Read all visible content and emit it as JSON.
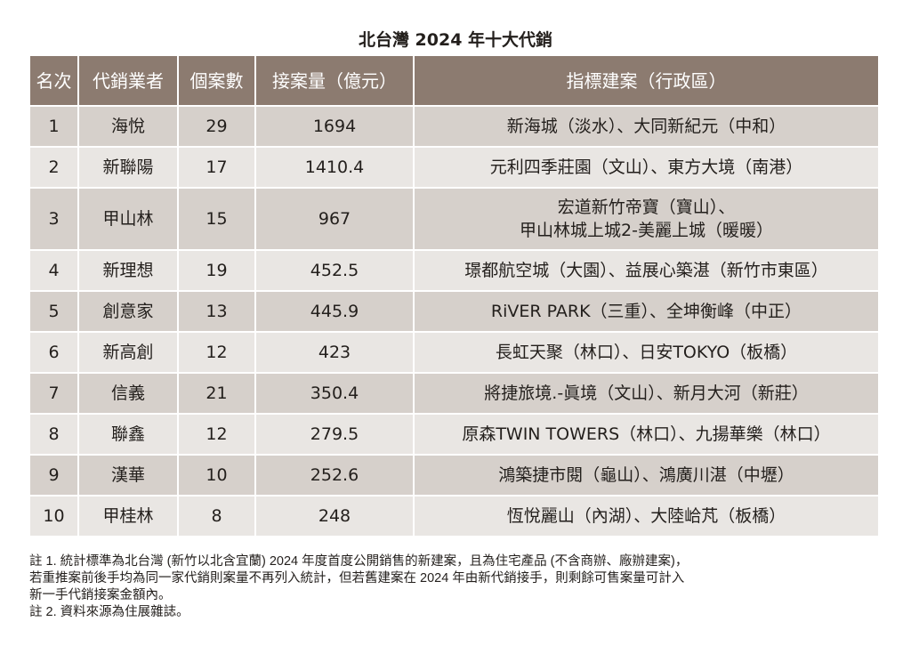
{
  "title": "北台灣 2024 年十大代銷",
  "headers": [
    "名次",
    "代銷業者",
    "個案數",
    "接案量（億元）",
    "指標建案（行政區）"
  ],
  "rows": [
    {
      "rank": "1",
      "agency": "海悅",
      "cases": "29",
      "volume": "1694",
      "projects": [
        "新海城（淡水）、大同新紀元（中和）"
      ]
    },
    {
      "rank": "2",
      "agency": "新聯陽",
      "cases": "17",
      "volume": "1410.4",
      "projects": [
        "元利四季莊園（文山）、東方大境（南港）"
      ]
    },
    {
      "rank": "3",
      "agency": "甲山林",
      "cases": "15",
      "volume": "967",
      "projects": [
        "宏道新竹帝寶（寶山）、",
        "甲山林城上城2-美麗上城（暖暖）"
      ]
    },
    {
      "rank": "4",
      "agency": "新理想",
      "cases": "19",
      "volume": "452.5",
      "projects": [
        "璟都航空城（大園）、益展心築湛（新竹市東區）"
      ]
    },
    {
      "rank": "5",
      "agency": "創意家",
      "cases": "13",
      "volume": "445.9",
      "projects": [
        "RiVER PARK（三重）、全坤衡峰（中正）"
      ]
    },
    {
      "rank": "6",
      "agency": "新高創",
      "cases": "12",
      "volume": "423",
      "projects": [
        "長虹天聚（林口）、日安TOKYO（板橋）"
      ]
    },
    {
      "rank": "7",
      "agency": "信義",
      "cases": "21",
      "volume": "350.4",
      "projects": [
        "將捷旅境.-眞境（文山）、新月大河（新莊）"
      ]
    },
    {
      "rank": "8",
      "agency": "聯鑫",
      "cases": "12",
      "volume": "279.5",
      "projects": [
        "原森TWIN TOWERS（林口）、九揚華樂（林口）"
      ]
    },
    {
      "rank": "9",
      "agency": "漢華",
      "cases": "10",
      "volume": "252.6",
      "projects": [
        "鴻築捷市閱（龜山）、鴻廣川湛（中壢）"
      ]
    },
    {
      "rank": "10",
      "agency": "甲桂林",
      "cases": "8",
      "volume": "248",
      "projects": [
        "恆悅麗山（內湖）、大陸峆芃（板橋）"
      ]
    }
  ],
  "notes": [
    "註 1. 統計標準為北台灣 (新竹以北含宜蘭) 2024 年度首度公開銷售的新建案，且為住宅產品 (不含商辦、廠辦建案)，",
    "若重推案前後手均為同一家代銷則案量不再列入統計，但若舊建案在 2024 年由新代銷接手，則剩餘可售案量可計入",
    "新一手代銷接案金額內。",
    "註 2. 資料來源為住展雜誌。"
  ]
}
